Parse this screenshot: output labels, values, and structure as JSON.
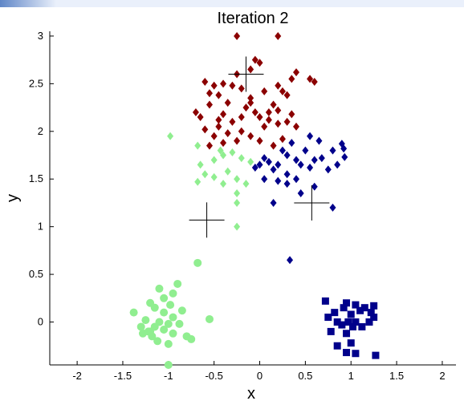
{
  "colors": {
    "dark_red": "#8b0000",
    "dark_blue": "#00008b",
    "light_green": "#90ee90",
    "axis": "#000000",
    "background": "#ffffff"
  },
  "chart_data": {
    "type": "scatter",
    "title": "Iteration 2",
    "xlabel": "x",
    "ylabel": "y",
    "xlim": [
      -2.3,
      2.15
    ],
    "ylim": [
      -0.45,
      3.05
    ],
    "xticks": [
      -2,
      -1.5,
      -1,
      -0.5,
      0,
      0.5,
      1,
      1.5,
      2
    ],
    "yticks": [
      0,
      0.5,
      1,
      1.5,
      2,
      2.5,
      3
    ],
    "grid": false,
    "centroids": [
      {
        "x": -0.15,
        "y": 2.6
      },
      {
        "x": -0.58,
        "y": 1.07
      },
      {
        "x": 0.57,
        "y": 1.25
      }
    ],
    "series": [
      {
        "color": "dark_red",
        "marker": "diamond",
        "points": [
          [
            -0.25,
            3.0
          ],
          [
            0.2,
            3.0
          ],
          [
            -0.05,
            2.75
          ],
          [
            0.0,
            2.72
          ],
          [
            -0.1,
            2.65
          ],
          [
            -0.25,
            2.6
          ],
          [
            0.4,
            2.62
          ],
          [
            0.35,
            2.55
          ],
          [
            0.55,
            2.55
          ],
          [
            0.6,
            2.52
          ],
          [
            -0.6,
            2.52
          ],
          [
            -0.5,
            2.48
          ],
          [
            -0.4,
            2.5
          ],
          [
            -0.3,
            2.48
          ],
          [
            -0.55,
            2.4
          ],
          [
            -0.45,
            2.38
          ],
          [
            -0.2,
            2.45
          ],
          [
            -0.1,
            2.35
          ],
          [
            0.2,
            2.48
          ],
          [
            0.25,
            2.42
          ],
          [
            0.3,
            2.38
          ],
          [
            0.05,
            2.42
          ],
          [
            -0.35,
            2.3
          ],
          [
            -0.55,
            2.28
          ],
          [
            -0.15,
            2.25
          ],
          [
            -0.05,
            2.2
          ],
          [
            0.15,
            2.28
          ],
          [
            0.2,
            2.22
          ],
          [
            -0.7,
            2.2
          ],
          [
            -0.65,
            2.15
          ],
          [
            -0.4,
            2.18
          ],
          [
            -0.3,
            2.1
          ],
          [
            0.0,
            2.15
          ],
          [
            0.1,
            2.12
          ],
          [
            0.35,
            2.18
          ],
          [
            0.3,
            2.1
          ],
          [
            -0.45,
            2.05
          ],
          [
            -0.6,
            2.02
          ],
          [
            -0.5,
            1.95
          ],
          [
            -0.35,
            1.98
          ],
          [
            -0.2,
            2.0
          ],
          [
            -0.1,
            1.95
          ],
          [
            0.05,
            2.05
          ],
          [
            0.2,
            2.08
          ],
          [
            -0.25,
            1.9
          ],
          [
            -0.4,
            1.88
          ],
          [
            0.0,
            1.9
          ],
          [
            0.15,
            1.85
          ],
          [
            -0.55,
            1.85
          ],
          [
            -0.45,
            2.12
          ],
          [
            0.25,
            1.92
          ],
          [
            0.4,
            2.05
          ],
          [
            -0.2,
            2.15
          ],
          [
            -0.1,
            2.3
          ],
          [
            0.1,
            2.2
          ]
        ]
      },
      {
        "color": "dark_blue",
        "marker": "diamond",
        "points": [
          [
            0.55,
            1.95
          ],
          [
            0.65,
            1.9
          ],
          [
            0.9,
            1.87
          ],
          [
            0.92,
            1.82
          ],
          [
            0.8,
            1.8
          ],
          [
            0.35,
            1.88
          ],
          [
            0.5,
            1.8
          ],
          [
            0.25,
            1.8
          ],
          [
            0.3,
            1.75
          ],
          [
            0.4,
            1.7
          ],
          [
            0.6,
            1.7
          ],
          [
            0.68,
            1.72
          ],
          [
            0.05,
            1.72
          ],
          [
            0.1,
            1.68
          ],
          [
            0.2,
            1.65
          ],
          [
            0.15,
            1.6
          ],
          [
            0.45,
            1.65
          ],
          [
            0.55,
            1.62
          ],
          [
            0.85,
            1.65
          ],
          [
            0.93,
            1.73
          ],
          [
            -0.05,
            1.62
          ],
          [
            0.0,
            1.65
          ],
          [
            0.3,
            1.55
          ],
          [
            0.4,
            1.5
          ],
          [
            0.75,
            1.6
          ],
          [
            0.3,
            1.45
          ],
          [
            0.05,
            1.5
          ],
          [
            0.2,
            1.48
          ],
          [
            0.6,
            1.42
          ],
          [
            0.45,
            1.35
          ],
          [
            0.15,
            1.25
          ],
          [
            0.8,
            1.2
          ],
          [
            0.33,
            0.65
          ]
        ]
      },
      {
        "color": "light_green",
        "marker": "diamond",
        "points": [
          [
            -0.98,
            1.95
          ],
          [
            -0.68,
            1.85
          ],
          [
            -0.43,
            1.8
          ],
          [
            -0.4,
            1.75
          ],
          [
            -0.3,
            1.78
          ],
          [
            -0.5,
            1.7
          ],
          [
            -0.65,
            1.65
          ],
          [
            -0.2,
            1.72
          ],
          [
            -0.1,
            1.68
          ],
          [
            -0.35,
            1.58
          ],
          [
            -0.6,
            1.55
          ],
          [
            -0.5,
            1.52
          ],
          [
            -0.25,
            1.5
          ],
          [
            -0.4,
            1.45
          ],
          [
            -0.68,
            1.47
          ],
          [
            -0.15,
            1.45
          ],
          [
            -0.25,
            1.35
          ],
          [
            -0.25,
            1.25
          ],
          [
            -0.25,
            1.0
          ]
        ]
      },
      {
        "color": "light_green",
        "marker": "circle",
        "points": [
          [
            -0.68,
            0.62
          ],
          [
            -1.1,
            0.35
          ],
          [
            -0.95,
            0.3
          ],
          [
            -0.9,
            0.4
          ],
          [
            -1.05,
            0.25
          ],
          [
            -1.2,
            0.2
          ],
          [
            -1.15,
            0.15
          ],
          [
            -0.98,
            0.18
          ],
          [
            -1.38,
            0.1
          ],
          [
            -1.05,
            0.1
          ],
          [
            -0.85,
            0.12
          ],
          [
            -1.25,
            0.02
          ],
          [
            -1.1,
            0.0
          ],
          [
            -0.95,
            0.05
          ],
          [
            -1.3,
            -0.05
          ],
          [
            -1.15,
            -0.05
          ],
          [
            -1.0,
            -0.02
          ],
          [
            -0.55,
            0.03
          ],
          [
            -0.88,
            -0.02
          ],
          [
            -1.22,
            -0.1
          ],
          [
            -1.05,
            -0.08
          ],
          [
            -1.28,
            -0.12
          ],
          [
            -1.18,
            -0.15
          ],
          [
            -0.95,
            -0.12
          ],
          [
            -0.8,
            -0.15
          ],
          [
            -0.75,
            -0.18
          ],
          [
            -1.0,
            -0.23
          ],
          [
            -1.12,
            -0.2
          ],
          [
            -1.2,
            -0.1
          ],
          [
            -1.0,
            -0.45
          ]
        ]
      },
      {
        "color": "dark_blue",
        "marker": "square",
        "points": [
          [
            0.72,
            0.22
          ],
          [
            0.95,
            0.2
          ],
          [
            1.05,
            0.18
          ],
          [
            0.92,
            0.15
          ],
          [
            1.15,
            0.15
          ],
          [
            1.25,
            0.17
          ],
          [
            1.1,
            0.12
          ],
          [
            1.22,
            0.1
          ],
          [
            0.82,
            0.1
          ],
          [
            1.0,
            0.08
          ],
          [
            1.25,
            0.05
          ],
          [
            0.75,
            0.05
          ],
          [
            0.85,
            0.0
          ],
          [
            0.97,
            0.0
          ],
          [
            1.05,
            0.0
          ],
          [
            0.9,
            -0.03
          ],
          [
            1.02,
            -0.05
          ],
          [
            1.12,
            -0.05
          ],
          [
            0.78,
            -0.1
          ],
          [
            0.95,
            -0.12
          ],
          [
            0.85,
            -0.25
          ],
          [
            1.0,
            -0.22
          ],
          [
            1.05,
            -0.33
          ],
          [
            0.95,
            -0.32
          ],
          [
            1.27,
            -0.35
          ],
          [
            1.2,
            0.0
          ]
        ]
      }
    ]
  }
}
